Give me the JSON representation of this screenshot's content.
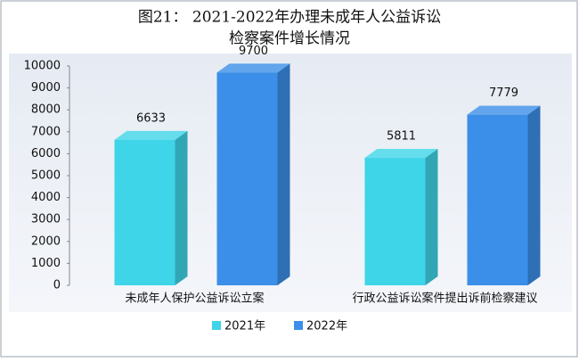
{
  "chart_data": {
    "type": "bar3d",
    "title": [
      "图21： 2021-2022年办理未成年人公益诉讼",
      "检察案件增长情况"
    ],
    "categories": [
      "未成年人保护公益诉讼立案",
      "行政公益诉讼案件提出诉前检察建议"
    ],
    "series": [
      {
        "name": "2021年",
        "color": "#3fd5e8",
        "values": [
          6633,
          5811
        ]
      },
      {
        "name": "2022年",
        "color": "#3b8fe8",
        "values": [
          9700,
          7779
        ]
      }
    ],
    "ylim": [
      0,
      10000
    ],
    "yticks": [
      0,
      1000,
      2000,
      3000,
      4000,
      5000,
      6000,
      7000,
      8000,
      9000,
      10000
    ],
    "legend": "bottom"
  }
}
